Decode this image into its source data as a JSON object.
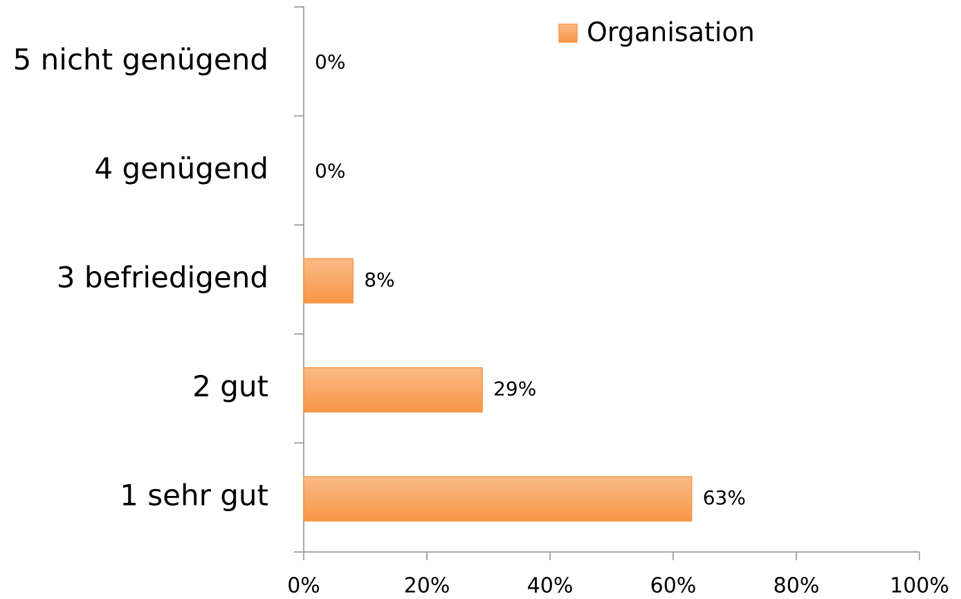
{
  "chart_data": {
    "type": "bar",
    "orientation": "horizontal",
    "categories": [
      "5 nicht genügend",
      "4 genügend",
      "3 befriedigend",
      "2 gut",
      "1 sehr gut"
    ],
    "series": [
      {
        "name": "Organisation",
        "color": "#f79646",
        "values": [
          0,
          0,
          8,
          29,
          63
        ],
        "value_labels": [
          "0%",
          "0%",
          "8%",
          "29%",
          "63%"
        ]
      }
    ],
    "xlim": [
      0,
      100
    ],
    "xticks": [
      {
        "value": 0,
        "label": "0%"
      },
      {
        "value": 20,
        "label": "20%"
      },
      {
        "value": 40,
        "label": "40%"
      },
      {
        "value": 60,
        "label": "60%"
      },
      {
        "value": 80,
        "label": "80%"
      },
      {
        "value": 100,
        "label": "100%"
      }
    ],
    "grid": false,
    "legend": "top"
  }
}
